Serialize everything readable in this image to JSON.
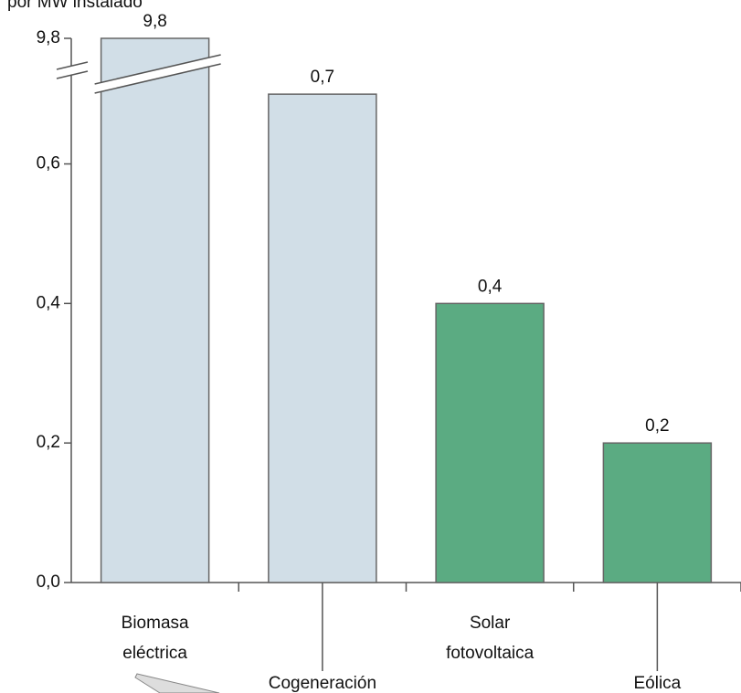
{
  "chart_data": {
    "type": "bar",
    "title": "por MW instalado",
    "categories": [
      "Biomasa eléctrica",
      "Cogeneración",
      "Solar fotovoltaica",
      "Eólica"
    ],
    "values": [
      9.8,
      0.7,
      0.4,
      0.2
    ],
    "value_labels": [
      "9,8",
      "0,7",
      "0,4",
      "0,2"
    ],
    "colors": [
      "#d1dee7",
      "#d1dee7",
      "#5bab82",
      "#5bab82"
    ],
    "ylim": [
      0,
      0.78
    ],
    "yticks": [
      {
        "value": 0,
        "label": "0,0"
      },
      {
        "value": 0.2,
        "label": "0,2"
      },
      {
        "value": 0.4,
        "label": "0,4"
      },
      {
        "value": 0.6,
        "label": "0,6"
      },
      {
        "value": 9.8,
        "label": "9,8"
      }
    ],
    "axis_break": true
  }
}
